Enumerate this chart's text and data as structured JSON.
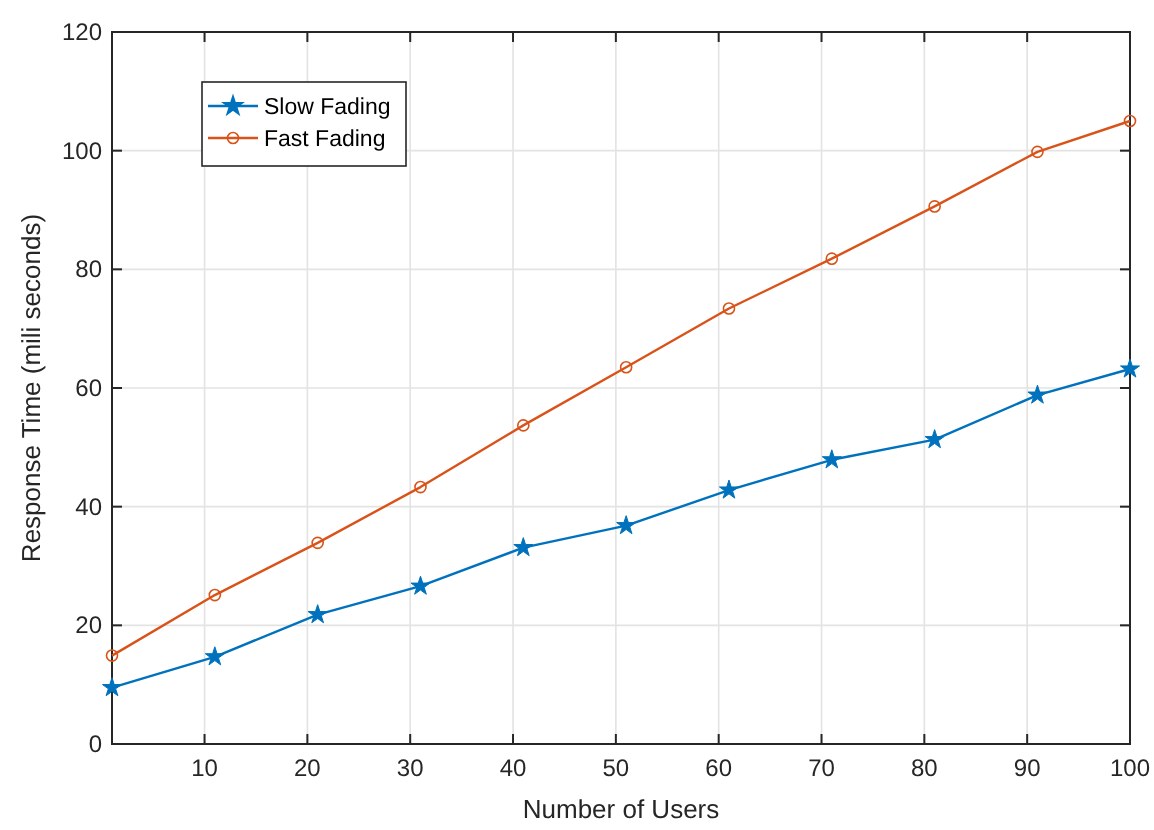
{
  "chart_data": {
    "type": "line",
    "xlabel": "Number of Users",
    "ylabel": "Response Time (mili seconds)",
    "x": [
      1,
      11,
      21,
      31,
      41,
      51,
      61,
      71,
      81,
      91,
      100
    ],
    "series": [
      {
        "name": "Slow Fading",
        "color": "#0072bd",
        "marker": "star",
        "values": [
          9.5,
          14.7,
          21.8,
          26.6,
          33.1,
          36.8,
          42.8,
          47.9,
          51.3,
          58.8,
          63.2
        ]
      },
      {
        "name": "Fast Fading",
        "color": "#d95319",
        "marker": "circle",
        "values": [
          14.9,
          25.1,
          33.9,
          43.3,
          53.7,
          63.5,
          73.4,
          81.8,
          90.6,
          99.8,
          105
        ]
      }
    ],
    "xlim": [
      1,
      100
    ],
    "xticks": [
      10,
      20,
      30,
      40,
      50,
      60,
      70,
      80,
      90,
      100
    ],
    "ylim": [
      0,
      120
    ],
    "yticks": [
      0,
      20,
      40,
      60,
      80,
      100,
      120
    ],
    "grid": true,
    "legend": "top left",
    "line_style": "solid"
  }
}
